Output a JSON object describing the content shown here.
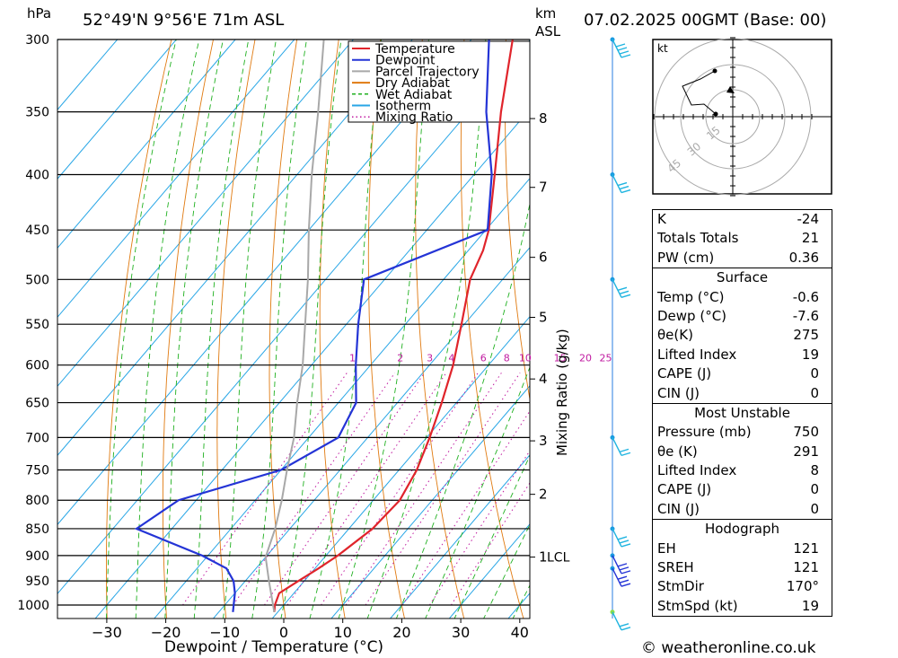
{
  "header": {
    "location": "52°49'N 9°56'E 71m ASL",
    "datetime": "07.02.2025 00GMT (Base: 00)",
    "left_unit": "hPa",
    "km_unit": "km",
    "asl_unit": "ASL"
  },
  "footer": {
    "credit": "© weatheronline.co.uk"
  },
  "chart_data": {
    "type": "line",
    "title": "",
    "xlabel": "Dewpoint / Temperature (°C)",
    "ylabel": "hPa",
    "mixing_ratio_axis_label": "Mixing Ratio (g/kg)",
    "x_ticks": [
      -30,
      -20,
      -10,
      0,
      10,
      20,
      30,
      40
    ],
    "xlim": [
      -40,
      40
    ],
    "pressure_ticks": [
      300,
      350,
      400,
      450,
      500,
      550,
      600,
      650,
      700,
      750,
      800,
      850,
      900,
      950,
      1000
    ],
    "ylim": [
      1040,
      300
    ],
    "y_scale": "log",
    "skew": "isotherms slanted",
    "km_ticks": [
      {
        "label": "8",
        "p": 355
      },
      {
        "label": "7",
        "p": 411
      },
      {
        "label": "6",
        "p": 477
      },
      {
        "label": "5",
        "p": 542
      },
      {
        "label": "4",
        "p": 618
      },
      {
        "label": "3",
        "p": 705
      },
      {
        "label": "2",
        "p": 790
      },
      {
        "label": "1",
        "p": 903
      },
      {
        "label": "LCL",
        "p": 903
      }
    ],
    "mixing_ratio_labels": [
      "1",
      "2",
      "3",
      "4",
      "6",
      "8",
      "10",
      "15",
      "20",
      "25"
    ],
    "mixing_ratio_label_pressure": 600,
    "legend": {
      "placement": "top-right",
      "entries": [
        {
          "name": "Temperature",
          "color": "#e0242b",
          "style": "solid"
        },
        {
          "name": "Dewpoint",
          "color": "#2434d6",
          "style": "solid"
        },
        {
          "name": "Parcel Trajectory",
          "color": "#a8a8a8",
          "style": "solid"
        },
        {
          "name": "Dry Adiabat",
          "color": "#e07a10",
          "style": "solid"
        },
        {
          "name": "Wet Adiabat",
          "color": "#1fb01f",
          "style": "dashed"
        },
        {
          "name": "Isotherm",
          "color": "#28a6e6",
          "style": "solid"
        },
        {
          "name": "Mixing Ratio",
          "color": "#c01aa0",
          "style": "dotted"
        }
      ]
    },
    "series": [
      {
        "name": "Temperature",
        "color": "#e0242b",
        "p": [
          1015,
          1000,
          975,
          950,
          925,
          900,
          850,
          800,
          750,
          700,
          650,
          600,
          550,
          500,
          470,
          450,
          400,
          350,
          300
        ],
        "t": [
          -0.6,
          -1.5,
          -2.5,
          -1.0,
          0.6,
          2.0,
          4.0,
          4.5,
          3.0,
          0.5,
          -2.5,
          -6.0,
          -10.5,
          -15.5,
          -17.5,
          -19.5,
          -26.5,
          -34.5,
          -43.0
        ]
      },
      {
        "name": "Dewpoint",
        "color": "#2434d6",
        "p": [
          1015,
          1000,
          975,
          950,
          925,
          900,
          850,
          800,
          750,
          700,
          650,
          600,
          550,
          500,
          450,
          400,
          350,
          300
        ],
        "t": [
          -7.6,
          -8.5,
          -10.0,
          -12.0,
          -15.0,
          -21.0,
          -36.0,
          -33.0,
          -20.0,
          -15.0,
          -17.0,
          -22.5,
          -28.0,
          -33.5,
          -19.7,
          -27.0,
          -37.0,
          -47.0
        ]
      },
      {
        "name": "Parcel Trajectory",
        "color": "#a8a8a8",
        "p": [
          1015,
          950,
          903,
          850,
          800,
          750,
          700,
          650,
          600,
          550,
          500,
          450,
          400,
          350,
          300
        ],
        "t": [
          -0.6,
          -6.0,
          -10.0,
          -12.5,
          -15.5,
          -19.0,
          -22.5,
          -27.0,
          -31.5,
          -37.0,
          -43.0,
          -50.0,
          -57.5,
          -65.5,
          -75.0
        ]
      }
    ]
  },
  "wind_barbs": [
    {
      "p": 300,
      "ws": 35
    },
    {
      "p": 400,
      "ws": 30
    },
    {
      "p": 500,
      "ws": 25
    },
    {
      "p": 700,
      "ws": 20
    },
    {
      "p": 850,
      "ws": 30
    },
    {
      "p": 900,
      "ws": 30
    },
    {
      "p": 925,
      "ws": 30
    },
    {
      "p": 1015,
      "ws": 20
    }
  ],
  "hodograph": {
    "unit": "kt",
    "ring_labels": [
      "15",
      "30",
      "45"
    ],
    "color": "#000000"
  },
  "indices": {
    "general": [
      {
        "label": "K",
        "value": "-24"
      },
      {
        "label": "Totals Totals",
        "value": "21"
      },
      {
        "label": "PW (cm)",
        "value": "0.36"
      }
    ],
    "surface": {
      "title": "Surface",
      "rows": [
        {
          "label": "Temp (°C)",
          "value": "-0.6"
        },
        {
          "label": "Dewp (°C)",
          "value": "-7.6"
        },
        {
          "label": "θe(K)",
          "value": "275"
        },
        {
          "label": "Lifted Index",
          "value": "19"
        },
        {
          "label": "CAPE (J)",
          "value": "0"
        },
        {
          "label": "CIN (J)",
          "value": "0"
        }
      ]
    },
    "most_unstable": {
      "title": "Most Unstable",
      "rows": [
        {
          "label": "Pressure (mb)",
          "value": "750"
        },
        {
          "label": "θe (K)",
          "value": "291"
        },
        {
          "label": "Lifted Index",
          "value": "8"
        },
        {
          "label": "CAPE (J)",
          "value": "0"
        },
        {
          "label": "CIN (J)",
          "value": "0"
        }
      ]
    },
    "hodograph": {
      "title": "Hodograph",
      "rows": [
        {
          "label": "EH",
          "value": "121"
        },
        {
          "label": "SREH",
          "value": "121"
        },
        {
          "label": "StmDir",
          "value": "170°"
        },
        {
          "label": "StmSpd (kt)",
          "value": "19"
        }
      ]
    }
  }
}
